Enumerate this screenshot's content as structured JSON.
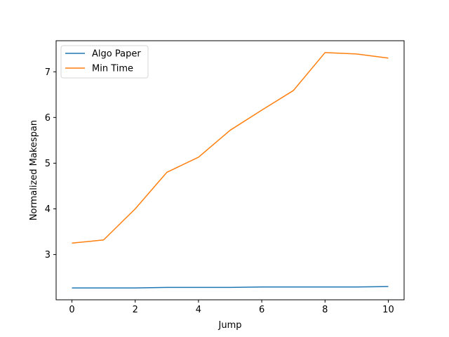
{
  "chart_data": {
    "type": "line",
    "title": "",
    "xlabel": "Jump",
    "ylabel": "Normalized Makespan",
    "x": [
      0,
      1,
      2,
      3,
      4,
      5,
      6,
      7,
      8,
      9,
      10
    ],
    "series": [
      {
        "name": "Algo Paper",
        "color": "#1f77b4",
        "values": [
          2.27,
          2.27,
          2.27,
          2.28,
          2.28,
          2.28,
          2.29,
          2.29,
          2.29,
          2.29,
          2.3
        ]
      },
      {
        "name": "Min Time",
        "color": "#ff7f0e",
        "values": [
          3.25,
          3.32,
          4.0,
          4.8,
          5.13,
          5.72,
          6.16,
          6.59,
          7.42,
          7.39,
          7.3
        ]
      }
    ],
    "xlim": [
      -0.5,
      10.5
    ],
    "ylim": [
      2.01,
      7.68
    ],
    "xticks": [
      0,
      2,
      4,
      6,
      8,
      10
    ],
    "yticks": [
      3,
      4,
      5,
      6,
      7
    ],
    "grid": false,
    "legend_position": "upper left"
  }
}
